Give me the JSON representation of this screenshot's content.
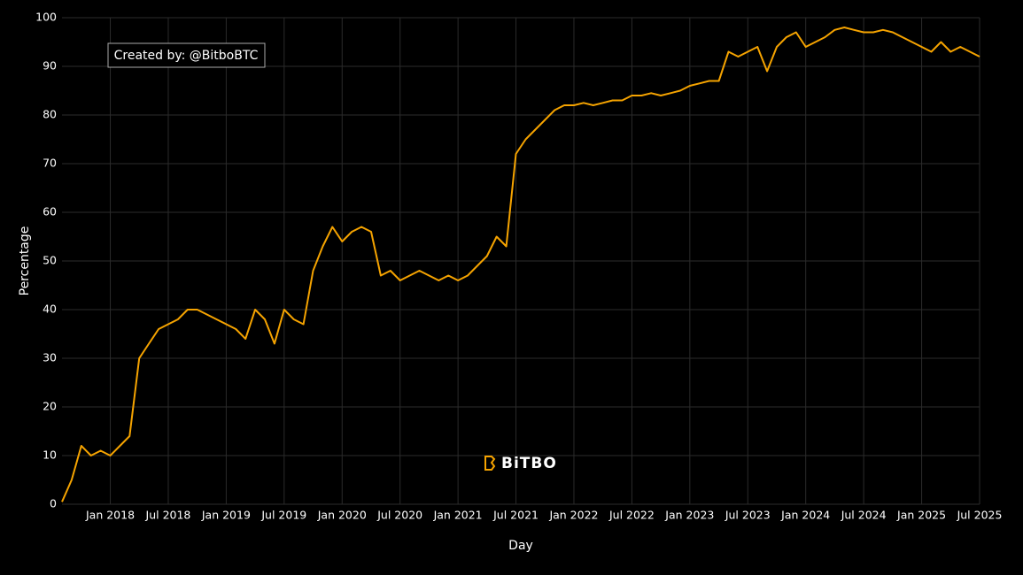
{
  "chart_data": {
    "type": "line",
    "annotation": "Created by: @BitboBTC",
    "watermark": "BiTBO",
    "x_label": "Day",
    "y_label": "Percentage",
    "x": [
      "2017-08",
      "2017-09",
      "2017-10",
      "2017-11",
      "2017-12",
      "2018-01",
      "2018-02",
      "2018-03",
      "2018-04",
      "2018-05",
      "2018-06",
      "2018-07",
      "2018-08",
      "2018-09",
      "2018-10",
      "2018-11",
      "2018-12",
      "2019-01",
      "2019-02",
      "2019-03",
      "2019-04",
      "2019-05",
      "2019-06",
      "2019-07",
      "2019-08",
      "2019-09",
      "2019-10",
      "2019-11",
      "2019-12",
      "2020-01",
      "2020-02",
      "2020-03",
      "2020-04",
      "2020-05",
      "2020-06",
      "2020-07",
      "2020-08",
      "2020-09",
      "2020-10",
      "2020-11",
      "2020-12",
      "2021-01",
      "2021-02",
      "2021-03",
      "2021-04",
      "2021-05",
      "2021-06",
      "2021-07",
      "2021-08",
      "2021-09",
      "2021-10",
      "2021-11",
      "2021-12",
      "2022-01",
      "2022-02",
      "2022-03",
      "2022-04",
      "2022-05",
      "2022-06",
      "2022-07",
      "2022-08",
      "2022-09",
      "2022-10",
      "2022-11",
      "2022-12",
      "2023-01",
      "2023-02",
      "2023-03",
      "2023-04",
      "2023-05",
      "2023-06",
      "2023-07",
      "2023-08",
      "2023-09",
      "2023-10",
      "2023-11",
      "2023-12",
      "2024-01",
      "2024-02",
      "2024-03",
      "2024-04",
      "2024-05",
      "2024-06",
      "2024-07",
      "2024-08",
      "2024-09",
      "2024-10",
      "2024-11",
      "2024-12",
      "2025-01",
      "2025-02",
      "2025-03",
      "2025-04",
      "2025-05",
      "2025-06",
      "2025-07"
    ],
    "series": [
      {
        "name": "Percentage",
        "color": "#f5a300",
        "values": [
          0.5,
          5,
          12,
          10,
          11,
          10,
          12,
          14,
          30,
          33,
          36,
          37,
          38,
          40,
          40,
          39,
          38,
          37,
          36,
          34,
          40,
          38,
          33,
          40,
          38,
          37,
          48,
          53,
          57,
          54,
          56,
          57,
          56,
          47,
          48,
          46,
          47,
          48,
          47,
          46,
          47,
          46,
          47,
          49,
          51,
          55,
          53,
          72,
          75,
          77,
          79,
          81,
          82,
          82,
          82.5,
          82,
          82.5,
          83,
          83,
          84,
          84,
          84.5,
          84,
          84.5,
          85,
          86,
          86.5,
          87,
          87,
          93,
          92,
          93,
          94,
          89,
          94,
          96,
          97,
          94,
          95,
          96,
          97.5,
          98,
          97.5,
          97,
          97,
          97.5,
          97,
          96,
          95,
          94,
          93,
          95,
          93,
          94,
          93,
          92
        ]
      }
    ],
    "xlim": [
      "2017-08",
      "2025-07"
    ],
    "xticks": [
      {
        "value": "2018-01",
        "label": "Jan 2018"
      },
      {
        "value": "2018-07",
        "label": "Jul 2018"
      },
      {
        "value": "2019-01",
        "label": "Jan 2019"
      },
      {
        "value": "2019-07",
        "label": "Jul 2019"
      },
      {
        "value": "2020-01",
        "label": "Jan 2020"
      },
      {
        "value": "2020-07",
        "label": "Jul 2020"
      },
      {
        "value": "2021-01",
        "label": "Jan 2021"
      },
      {
        "value": "2021-07",
        "label": "Jul 2021"
      },
      {
        "value": "2022-01",
        "label": "Jan 2022"
      },
      {
        "value": "2022-07",
        "label": "Jul 2022"
      },
      {
        "value": "2023-01",
        "label": "Jan 2023"
      },
      {
        "value": "2023-07",
        "label": "Jul 2023"
      },
      {
        "value": "2024-01",
        "label": "Jan 2024"
      },
      {
        "value": "2024-07",
        "label": "Jul 2024"
      },
      {
        "value": "2025-01",
        "label": "Jan 2025"
      },
      {
        "value": "2025-07",
        "label": "Jul 2025"
      }
    ],
    "ylim": [
      0,
      100
    ],
    "yticks": [
      0,
      10,
      20,
      30,
      40,
      50,
      60,
      70,
      80,
      90,
      100
    ],
    "grid": true
  }
}
